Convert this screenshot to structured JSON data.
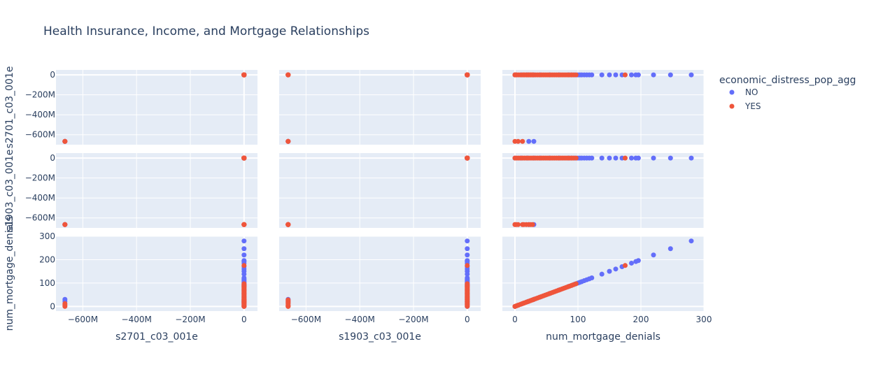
{
  "chart_data": {
    "type": "scatter",
    "title": "Health Insurance, Income, and Mortgage Relationships",
    "variables": [
      "s2701_c03_001e",
      "s1903_c03_001e",
      "num_mortgage_denials"
    ],
    "axis_ranges": {
      "s2701_c03_001e": [
        -700000000,
        50000000
      ],
      "s1903_c03_001e": [
        -700000000,
        50000000
      ],
      "num_mortgage_denials": [
        -20,
        300
      ]
    },
    "tick_values": {
      "s2701_c03_001e": [
        -600000000,
        -400000000,
        -200000000,
        0
      ],
      "s1903_c03_001e": [
        -600000000,
        -400000000,
        -200000000,
        0
      ],
      "num_mortgage_denials": [
        0,
        100,
        200,
        300
      ]
    },
    "tick_labels": {
      "s2701_c03_001e": [
        "−600M",
        "−400M",
        "−200M",
        "0"
      ],
      "s1903_c03_001e": [
        "−600M",
        "−400M",
        "−200M",
        "0"
      ],
      "num_mortgage_denials": [
        "0",
        "100",
        "200",
        "300"
      ]
    },
    "y_tick_labels": {
      "s2701_c03_001e": [
        "0",
        "−200M",
        "−400M",
        "−600M"
      ],
      "s1903_c03_001e": [
        "0",
        "−200M",
        "−400M",
        "−600M"
      ],
      "num_mortgage_denials": [
        "0",
        "100",
        "200",
        "300"
      ]
    },
    "y_tick_values": {
      "s2701_c03_001e": [
        0,
        -200000000,
        -400000000,
        -600000000
      ],
      "s1903_c03_001e": [
        0,
        -200000000,
        -400000000,
        -600000000
      ],
      "num_mortgage_denials": [
        0,
        100,
        200,
        300
      ]
    },
    "x_axis_titles": [
      "s2701_c03_001e",
      "s1903_c03_001e",
      "num_mortgage_denials"
    ],
    "y_axis_titles": [
      "s2701_c03_001e",
      "s1903_c03_001e",
      "num_mortgage_denials"
    ],
    "legend": {
      "title": "economic_distress_pop_agg",
      "placement": "right"
    },
    "grid": true,
    "series": [
      {
        "name": "NO",
        "color": "#636efa",
        "points": [
          [
            0,
            0,
            0
          ],
          [
            0,
            0,
            10
          ],
          [
            0,
            0,
            20
          ],
          [
            0,
            0,
            30
          ],
          [
            0,
            0,
            40
          ],
          [
            0,
            0,
            55
          ],
          [
            0,
            0,
            70
          ],
          [
            0,
            0,
            85
          ],
          [
            0,
            0,
            90
          ],
          [
            0,
            0,
            95
          ],
          [
            0,
            0,
            100
          ],
          [
            0,
            0,
            103
          ],
          [
            0,
            0,
            106
          ],
          [
            0,
            0,
            110
          ],
          [
            0,
            0,
            114
          ],
          [
            0,
            0,
            118
          ],
          [
            0,
            0,
            122
          ],
          [
            0,
            0,
            138
          ],
          [
            0,
            0,
            150
          ],
          [
            0,
            0,
            160
          ],
          [
            0,
            0,
            170
          ],
          [
            0,
            0,
            185
          ],
          [
            0,
            0,
            192
          ],
          [
            0,
            0,
            196
          ],
          [
            0,
            0,
            220
          ],
          [
            0,
            0,
            247
          ],
          [
            0,
            0,
            280
          ],
          [
            -666666666,
            -666666666,
            22
          ],
          [
            -666666666,
            -666666666,
            30
          ]
        ]
      },
      {
        "name": "YES",
        "color": "#ef553b",
        "points": [
          [
            0,
            0,
            0
          ],
          [
            0,
            0,
            3
          ],
          [
            0,
            0,
            6
          ],
          [
            0,
            0,
            9
          ],
          [
            0,
            0,
            12
          ],
          [
            0,
            0,
            15
          ],
          [
            0,
            0,
            18
          ],
          [
            0,
            0,
            21
          ],
          [
            0,
            0,
            24
          ],
          [
            0,
            0,
            27
          ],
          [
            0,
            0,
            30
          ],
          [
            0,
            0,
            33
          ],
          [
            0,
            0,
            36
          ],
          [
            0,
            0,
            39
          ],
          [
            0,
            0,
            42
          ],
          [
            0,
            0,
            45
          ],
          [
            0,
            0,
            48
          ],
          [
            0,
            0,
            51
          ],
          [
            0,
            0,
            54
          ],
          [
            0,
            0,
            57
          ],
          [
            0,
            0,
            60
          ],
          [
            0,
            0,
            63
          ],
          [
            0,
            0,
            66
          ],
          [
            0,
            0,
            69
          ],
          [
            0,
            0,
            72
          ],
          [
            0,
            0,
            75
          ],
          [
            0,
            0,
            78
          ],
          [
            0,
            0,
            81
          ],
          [
            0,
            0,
            84
          ],
          [
            0,
            0,
            87
          ],
          [
            0,
            0,
            90
          ],
          [
            0,
            0,
            93
          ],
          [
            0,
            0,
            97
          ],
          [
            0,
            0,
            175
          ],
          [
            0,
            -666666666,
            0
          ],
          [
            0,
            -666666666,
            2
          ],
          [
            0,
            -666666666,
            14
          ],
          [
            0,
            -666666666,
            18
          ],
          [
            0,
            -666666666,
            22
          ],
          [
            0,
            -666666666,
            25
          ],
          [
            0,
            -666666666,
            28
          ],
          [
            -666666666,
            -666666666,
            0
          ],
          [
            -666666666,
            -666666666,
            5
          ],
          [
            -666666666,
            -666666666,
            12
          ]
        ]
      }
    ]
  }
}
